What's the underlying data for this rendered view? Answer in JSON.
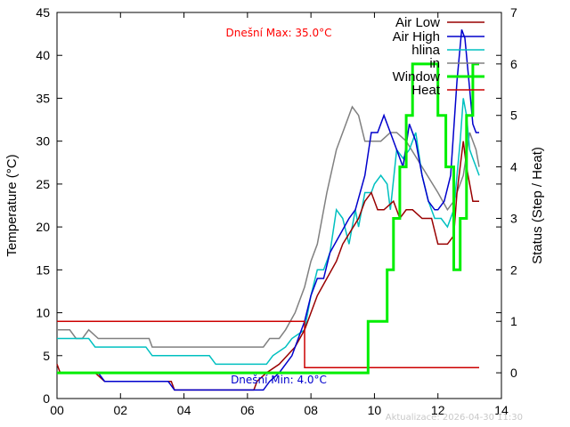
{
  "chart_data": {
    "type": "line",
    "xlabel": "",
    "ylabel": "Temperature (°C)",
    "y2label": "Status (Step / Heat)",
    "xlim": [
      0,
      14
    ],
    "ylim": [
      0,
      45
    ],
    "y2lim": [
      -0.5,
      7
    ],
    "x_ticks": [
      {
        "value": 0,
        "label": "00"
      },
      {
        "value": 2,
        "label": "02"
      },
      {
        "value": 4,
        "label": "04"
      },
      {
        "value": 6,
        "label": "06"
      },
      {
        "value": 8,
        "label": "08"
      },
      {
        "value": 10,
        "label": "10"
      },
      {
        "value": 12,
        "label": "12"
      },
      {
        "value": 14,
        "label": "14"
      }
    ],
    "y_ticks": [
      0,
      5,
      10,
      15,
      20,
      25,
      30,
      35,
      40,
      45
    ],
    "y2_ticks": [
      0,
      1,
      2,
      3,
      4,
      5,
      6,
      7
    ],
    "grid": false,
    "legend_position": "top-right",
    "annotations": {
      "max_text": "Dnešní Max: 35.0°C",
      "min_text": "Dnešní Min: 4.0°C",
      "max_color": "#ff0000",
      "min_color": "#0000cc"
    },
    "footer": "Aktualizace: 2026-04-30 11:30",
    "series": [
      {
        "name": "Air Low",
        "color": "#990000",
        "axis": "left",
        "width": 1.5,
        "x": [
          0,
          0.1,
          0.3,
          1.0,
          1.2,
          1.5,
          2.0,
          3.0,
          3.6,
          3.7,
          4.0,
          5.0,
          6.2,
          6.3,
          6.6,
          7.0,
          7.5,
          7.8,
          8.0,
          8.2,
          8.5,
          8.8,
          9.0,
          9.5,
          9.7,
          9.9,
          10.1,
          10.3,
          10.6,
          10.8,
          11.0,
          11.2,
          11.5,
          11.8,
          12.0,
          12.3,
          12.5,
          12.6,
          12.8,
          12.9,
          13.1,
          13.3
        ],
        "y": [
          4,
          3,
          3,
          3,
          3,
          2,
          2,
          2,
          2,
          1,
          1,
          1,
          1,
          2,
          3,
          4,
          6,
          8,
          10,
          12,
          14,
          16,
          18,
          21,
          23,
          24,
          22,
          22,
          23,
          21,
          22,
          22,
          21,
          21,
          18,
          18,
          19,
          24,
          30,
          27,
          23,
          23
        ]
      },
      {
        "name": "Air High",
        "color": "#0000cc",
        "axis": "left",
        "width": 1.5,
        "x": [
          0,
          0.1,
          0.3,
          1.3,
          1.5,
          2.0,
          3.5,
          3.7,
          4.0,
          6.5,
          6.7,
          7.0,
          7.4,
          7.8,
          8.0,
          8.2,
          8.4,
          8.6,
          8.9,
          9.2,
          9.4,
          9.7,
          9.9,
          10.1,
          10.3,
          10.5,
          10.7,
          10.9,
          11.1,
          11.3,
          11.5,
          11.7,
          11.9,
          12.0,
          12.2,
          12.4,
          12.6,
          12.75,
          12.85,
          13.0,
          13.1,
          13.2,
          13.3
        ],
        "y": [
          3,
          3,
          3,
          3,
          2,
          2,
          2,
          1,
          1,
          1,
          2,
          3,
          5,
          9,
          12,
          14,
          14,
          17,
          19,
          21,
          22,
          26,
          31,
          31,
          33,
          31,
          29,
          27,
          32,
          30,
          26,
          23,
          22,
          22,
          23,
          26,
          37,
          43,
          42,
          36,
          32,
          31,
          31
        ]
      },
      {
        "name": "hlina",
        "color": "#00c0c0",
        "axis": "left",
        "width": 1.5,
        "x": [
          0,
          0.5,
          1.0,
          1.2,
          2.0,
          2.8,
          3.0,
          4.0,
          4.8,
          5.0,
          6.0,
          6.6,
          6.8,
          7.2,
          7.4,
          7.8,
          8.0,
          8.2,
          8.4,
          8.6,
          8.8,
          9.0,
          9.2,
          9.4,
          9.5,
          9.7,
          9.9,
          10.0,
          10.2,
          10.4,
          10.5,
          10.7,
          10.9,
          11.1,
          11.3,
          11.5,
          11.7,
          11.9,
          12.1,
          12.3,
          12.5,
          12.7,
          12.8,
          12.9,
          13.0,
          13.1,
          13.2,
          13.3
        ],
        "y": [
          7,
          7,
          7,
          6,
          6,
          6,
          5,
          5,
          5,
          4,
          4,
          4,
          5,
          6,
          7,
          8,
          12,
          15,
          15,
          17,
          22,
          21,
          18,
          22,
          20,
          24,
          24,
          25,
          26,
          25,
          22,
          29,
          28,
          29,
          31,
          26,
          23,
          21,
          21,
          20,
          22,
          30,
          35,
          33,
          29,
          28,
          27,
          26
        ]
      },
      {
        "name": "in",
        "color": "#808080",
        "axis": "left",
        "width": 1.5,
        "x": [
          0,
          0.4,
          0.6,
          0.8,
          1.0,
          1.3,
          2.0,
          2.9,
          3.0,
          3.5,
          6.0,
          6.5,
          6.7,
          7.0,
          7.2,
          7.5,
          7.8,
          8.0,
          8.2,
          8.5,
          8.8,
          9.0,
          9.2,
          9.3,
          9.5,
          9.7,
          9.9,
          10.2,
          10.5,
          10.7,
          11.0,
          11.5,
          12.0,
          12.3,
          12.5,
          12.8,
          13.0,
          13.2,
          13.3
        ],
        "y": [
          8,
          8,
          7,
          7,
          8,
          7,
          7,
          7,
          6,
          6,
          6,
          6,
          7,
          7,
          8,
          10,
          13,
          16,
          18,
          24,
          29,
          31,
          33,
          34,
          33,
          30,
          30,
          30,
          31,
          31,
          30,
          27,
          24,
          22,
          23,
          26,
          31,
          29,
          27
        ]
      },
      {
        "name": "Window",
        "color": "#00ee00",
        "axis": "right",
        "width": 3,
        "step": true,
        "x": [
          0,
          9.8,
          10.4,
          10.6,
          10.8,
          11.0,
          11.2,
          11.8,
          12.0,
          12.25,
          12.5,
          12.7,
          12.9,
          13.1,
          13.3
        ],
        "y": [
          0,
          1,
          2,
          3,
          4,
          5,
          6,
          6,
          5,
          4,
          2,
          3,
          5,
          6,
          6
        ]
      },
      {
        "name": "Heat",
        "color": "#cc0000",
        "axis": "right",
        "width": 1.5,
        "step": true,
        "x": [
          0,
          7.8,
          13.3
        ],
        "y": [
          1,
          0.1,
          0.1
        ]
      }
    ]
  }
}
